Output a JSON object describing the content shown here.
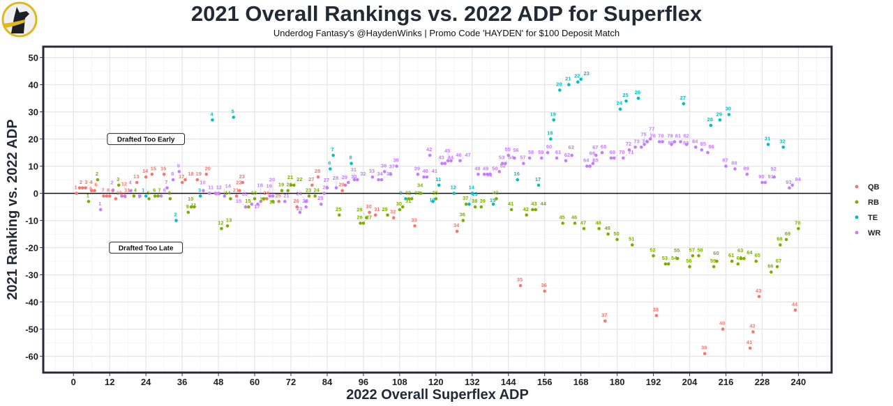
{
  "chart_data": {
    "type": "scatter",
    "title": "2021 Overall Rankings vs. 2022 ADP for Superflex",
    "subtitle": "Underdog Fantasy's @HaydenWinks | Promo Code 'HAYDEN' for $100 Deposit Match",
    "xlabel": "2022 Overall Superflex ADP",
    "ylabel": "2021 Ranking vs. 2022 ADP",
    "xlim": [
      -10,
      251
    ],
    "ylim": [
      -66,
      54
    ],
    "xticks": [
      0,
      12,
      24,
      36,
      48,
      60,
      72,
      84,
      96,
      108,
      120,
      132,
      144,
      156,
      168,
      180,
      192,
      204,
      216,
      228,
      240
    ],
    "yticks": [
      50,
      40,
      30,
      20,
      10,
      0,
      -10,
      -20,
      -30,
      -40,
      -50,
      -60
    ],
    "grid": true,
    "legend_position": "right",
    "annotations": [
      {
        "text": "Drafted Too Early",
        "x": 24,
        "y": 20
      },
      {
        "text": "Drafted Too Late",
        "x": 24,
        "y": -20
      }
    ],
    "series": [
      {
        "name": "QB",
        "color": "#F8766D",
        "points": [
          [
            1,
            0,
            "1"
          ],
          [
            2,
            2,
            "2"
          ],
          [
            3,
            2,
            "3"
          ],
          [
            4,
            2,
            "4"
          ],
          [
            6,
            1,
            "5"
          ],
          [
            7,
            1,
            "6"
          ],
          [
            10,
            -1,
            "7"
          ],
          [
            11,
            -1,
            "8"
          ],
          [
            12,
            -1,
            "9"
          ],
          [
            14,
            -2,
            "10"
          ],
          [
            16,
            -1,
            "11"
          ],
          [
            17,
            -1,
            "12"
          ],
          [
            21,
            4,
            "13"
          ],
          [
            24,
            6,
            "14"
          ],
          [
            26,
            7,
            "15"
          ],
          [
            30,
            7,
            "16"
          ],
          [
            36,
            4,
            "17"
          ],
          [
            37,
            5,
            "18"
          ],
          [
            41,
            5,
            "19"
          ],
          [
            44,
            7,
            "20"
          ],
          [
            54,
            -1,
            "21"
          ],
          [
            55,
            1,
            "22"
          ],
          [
            56,
            4,
            "23"
          ],
          [
            64,
            -2,
            "24"
          ],
          [
            68,
            -3,
            "25"
          ],
          [
            74,
            -5,
            "26"
          ],
          [
            79,
            3,
            "27"
          ],
          [
            81,
            6,
            "28"
          ],
          [
            89,
            1,
            "29"
          ],
          [
            98,
            -7,
            "30"
          ],
          [
            100,
            -8,
            "31"
          ],
          [
            106,
            -9,
            "32"
          ],
          [
            113,
            -12,
            "33"
          ],
          [
            127,
            -14,
            "34"
          ],
          [
            148,
            -34,
            "35"
          ],
          [
            156,
            -36,
            "36"
          ],
          [
            176,
            -47,
            "37"
          ],
          [
            193,
            -45,
            "38"
          ],
          [
            209,
            -59,
            "39"
          ],
          [
            215,
            -50,
            "40"
          ],
          [
            224,
            -57,
            "41"
          ],
          [
            225,
            -51,
            "42"
          ],
          [
            227,
            -38,
            "43"
          ],
          [
            239,
            -43,
            "44"
          ]
        ]
      },
      {
        "name": "RB",
        "color": "#7CAE00",
        "points": [
          [
            5,
            -3,
            "1"
          ],
          [
            8,
            5,
            "2"
          ],
          [
            15,
            3,
            "3"
          ],
          [
            20,
            -1,
            "4"
          ],
          [
            25,
            -2,
            "5"
          ],
          [
            27,
            -1,
            "6"
          ],
          [
            28,
            -1,
            "7"
          ],
          [
            32,
            -2,
            "8"
          ],
          [
            38,
            -7,
            "9"
          ],
          [
            39,
            -5,
            "10"
          ],
          [
            40,
            -5,
            "11"
          ],
          [
            49,
            -13,
            "12"
          ],
          [
            51,
            -12,
            "13"
          ],
          [
            52,
            -2,
            "14"
          ],
          [
            58,
            -5,
            "15"
          ],
          [
            60,
            -2,
            "16"
          ],
          [
            63,
            -2,
            "17"
          ],
          [
            66,
            -3,
            "18"
          ],
          [
            69,
            1,
            "19"
          ],
          [
            71,
            1,
            "20"
          ],
          [
            72,
            3,
            "21"
          ],
          [
            73,
            3,
            "22"
          ],
          [
            78,
            -1,
            "23"
          ],
          [
            80,
            -1,
            "24"
          ],
          [
            88,
            -8,
            "25"
          ],
          [
            95,
            -11,
            "26"
          ],
          [
            96,
            -11,
            "27"
          ],
          [
            97,
            -9,
            "28"
          ],
          [
            104,
            -8,
            "29"
          ],
          [
            108,
            -6,
            "30"
          ],
          [
            109,
            -5,
            "31"
          ],
          [
            111,
            -2,
            "32"
          ],
          [
            112,
            -2,
            "33"
          ],
          [
            115,
            0,
            "34"
          ],
          [
            120,
            -2,
            "35"
          ],
          [
            129,
            -10,
            "36"
          ],
          [
            130,
            -4,
            "37"
          ],
          [
            133,
            -5,
            "38"
          ],
          [
            135,
            -5,
            "39"
          ],
          [
            140,
            -2,
            "40"
          ],
          [
            145,
            -6,
            "41"
          ],
          [
            150,
            -8,
            "42"
          ],
          [
            152,
            -6,
            "43"
          ],
          [
            153,
            -6,
            "44"
          ],
          [
            162,
            -11,
            "45"
          ],
          [
            166,
            -11,
            "46"
          ],
          [
            169,
            -13,
            "47"
          ],
          [
            174,
            -13,
            "48"
          ],
          [
            177,
            -15,
            "49"
          ],
          [
            180,
            -17,
            "50"
          ],
          [
            185,
            -19,
            "51"
          ],
          [
            192,
            -23,
            "52"
          ],
          [
            196,
            -26,
            "53"
          ],
          [
            197,
            -26,
            "54"
          ],
          [
            200,
            -24,
            "55"
          ],
          [
            204,
            -27,
            "56"
          ],
          [
            205,
            -23,
            "57"
          ],
          [
            207,
            -23,
            "58"
          ],
          [
            212,
            -27,
            "59"
          ],
          [
            213,
            -25,
            "60"
          ],
          [
            218,
            -25,
            "61"
          ],
          [
            220,
            -26,
            "62"
          ],
          [
            221,
            -24,
            "63"
          ],
          [
            222,
            -24,
            "64"
          ],
          [
            226,
            -25,
            "65"
          ],
          [
            231,
            -29,
            "66"
          ],
          [
            233,
            -27,
            "67"
          ],
          [
            234,
            -19,
            "68"
          ],
          [
            236,
            -17,
            "69"
          ],
          [
            240,
            -13,
            "70"
          ]
        ]
      },
      {
        "name": "TE",
        "color": "#00BFC4",
        "points": [
          [
            24,
            -1,
            "1"
          ],
          [
            34,
            -10,
            "2"
          ],
          [
            42,
            -1,
            "3"
          ],
          [
            46,
            27,
            "4"
          ],
          [
            53,
            28,
            "5"
          ],
          [
            85,
            9,
            "6"
          ],
          [
            86,
            14,
            "7"
          ],
          [
            92,
            11,
            "8"
          ],
          [
            110,
            -2,
            "9"
          ],
          [
            119,
            -3,
            "10"
          ],
          [
            121,
            3,
            "11"
          ],
          [
            126,
            0,
            "12"
          ],
          [
            131,
            -4,
            "13"
          ],
          [
            132,
            0,
            "14"
          ],
          [
            139,
            -4,
            "15"
          ],
          [
            147,
            5,
            "16"
          ],
          [
            154,
            3,
            "17"
          ],
          [
            158,
            20,
            "18"
          ],
          [
            159,
            27,
            "19"
          ],
          [
            161,
            38,
            "20"
          ],
          [
            164,
            40,
            "21"
          ],
          [
            167,
            41,
            "22"
          ],
          [
            168,
            42,
            "23"
          ],
          [
            181,
            31,
            "24"
          ],
          [
            183,
            34,
            "25"
          ],
          [
            187,
            35,
            "26"
          ],
          [
            202,
            33,
            "27"
          ],
          [
            211,
            25,
            "28"
          ],
          [
            214,
            27,
            "29"
          ],
          [
            217,
            29,
            "30"
          ],
          [
            230,
            18,
            "31"
          ],
          [
            235,
            17,
            "32"
          ]
        ]
      },
      {
        "name": "WR",
        "color": "#C77CFF",
        "points": [
          [
            9,
            -6,
            "1"
          ],
          [
            13,
            1,
            "2"
          ],
          [
            16,
            -1,
            "3"
          ],
          [
            19,
            1,
            "4"
          ],
          [
            22,
            -1,
            "5"
          ],
          [
            29,
            -1,
            "6"
          ],
          [
            31,
            2,
            "7"
          ],
          [
            33,
            5,
            "8"
          ],
          [
            35,
            8,
            "9"
          ],
          [
            43,
            1,
            "10"
          ],
          [
            45,
            0,
            "11"
          ],
          [
            47,
            0,
            "12"
          ],
          [
            48,
            0,
            "13"
          ],
          [
            50,
            -1,
            "14"
          ],
          [
            57,
            -5,
            "15"
          ],
          [
            59,
            -4,
            "16"
          ],
          [
            61,
            -4,
            "17"
          ],
          [
            62,
            -3,
            "18"
          ],
          [
            65,
            -1,
            "19"
          ],
          [
            66,
            -1,
            "20"
          ],
          [
            70,
            -3,
            "21"
          ],
          [
            77,
            -5,
            "22"
          ],
          [
            75,
            -7,
            "23"
          ],
          [
            77,
            -3,
            "24"
          ],
          [
            82,
            -4,
            "25"
          ],
          [
            83,
            0,
            "26"
          ],
          [
            84,
            2,
            "27"
          ],
          [
            87,
            2,
            "28"
          ],
          [
            90,
            3,
            "29"
          ],
          [
            91,
            4,
            "30"
          ],
          [
            93,
            5,
            "31"
          ],
          [
            94,
            5,
            "32"
          ],
          [
            99,
            6,
            "33"
          ],
          [
            101,
            5,
            "34"
          ],
          [
            102,
            5,
            "35"
          ],
          [
            103,
            8,
            "36"
          ],
          [
            105,
            7,
            "37"
          ],
          [
            107,
            10,
            "38"
          ],
          [
            114,
            7,
            "39"
          ],
          [
            116,
            6,
            "40"
          ],
          [
            117,
            6,
            "41"
          ],
          [
            118,
            14,
            "42"
          ],
          [
            122,
            11,
            "43"
          ],
          [
            123,
            11,
            "44"
          ],
          [
            124,
            12,
            "45"
          ],
          [
            125,
            12,
            "46"
          ],
          [
            128,
            12,
            "47"
          ],
          [
            134,
            7,
            "48"
          ],
          [
            136,
            7,
            "49"
          ],
          [
            137,
            7,
            "50"
          ],
          [
            138,
            7,
            "51"
          ],
          [
            141,
            8,
            "52"
          ],
          [
            142,
            11,
            "53"
          ],
          [
            143,
            11,
            "54"
          ],
          [
            144,
            14,
            "55"
          ],
          [
            146,
            13,
            "56"
          ],
          [
            149,
            11,
            "57"
          ],
          [
            151,
            13,
            "58"
          ],
          [
            155,
            13,
            "59"
          ],
          [
            157,
            15,
            "60"
          ],
          [
            160,
            13,
            "61"
          ],
          [
            163,
            12,
            "62"
          ],
          [
            165,
            14,
            "63"
          ],
          [
            170,
            10,
            "64"
          ],
          [
            171,
            10,
            "65"
          ],
          [
            172,
            11,
            "66"
          ],
          [
            173,
            14,
            "67"
          ],
          [
            175,
            15,
            "68"
          ],
          [
            178,
            13,
            "69"
          ],
          [
            179,
            13,
            "70"
          ],
          [
            182,
            13,
            "71"
          ],
          [
            184,
            16,
            "72"
          ],
          [
            186,
            17,
            "73"
          ],
          [
            188,
            17,
            "74"
          ],
          [
            189,
            18,
            "75"
          ],
          [
            190,
            19,
            "76"
          ],
          [
            191,
            20,
            "77"
          ],
          [
            194,
            19,
            "78"
          ],
          [
            195,
            19,
            "79"
          ],
          [
            198,
            18,
            "80"
          ],
          [
            199,
            19,
            "81"
          ],
          [
            201,
            19,
            "82"
          ],
          [
            203,
            18,
            "83"
          ],
          [
            206,
            17,
            "84"
          ],
          [
            208,
            16,
            "85"
          ],
          [
            210,
            15,
            "86"
          ],
          [
            216,
            10,
            "87"
          ],
          [
            219,
            9,
            "88"
          ],
          [
            223,
            7,
            "89"
          ],
          [
            228,
            4,
            "90"
          ],
          [
            229,
            4,
            "91"
          ],
          [
            232,
            6,
            "92"
          ],
          [
            237,
            2,
            "93"
          ],
          [
            238,
            3,
            "94"
          ]
        ]
      }
    ]
  }
}
